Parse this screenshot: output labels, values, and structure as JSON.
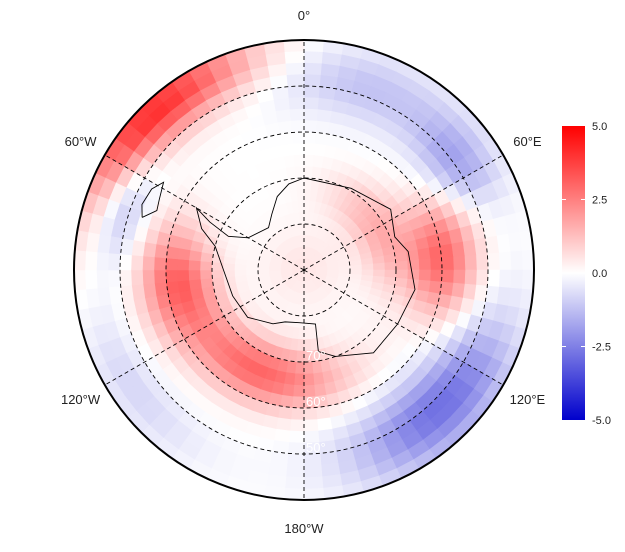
{
  "chart_data": {
    "type": "heatmap",
    "projection": "south-polar",
    "lat_range": [
      -90,
      -40
    ],
    "lon_labels": [
      {
        "lon": 0,
        "text": "0°"
      },
      {
        "lon": 60,
        "text": "60°E"
      },
      {
        "lon": 120,
        "text": "120°E"
      },
      {
        "lon": 180,
        "text": "180°W"
      },
      {
        "lon": 240,
        "text": "120°W"
      },
      {
        "lon": 300,
        "text": "60°W"
      }
    ],
    "lat_circles": [
      -80,
      -70,
      -60,
      -50
    ],
    "lat_labels": [
      {
        "lat": -70,
        "text": "70°"
      },
      {
        "lat": -60,
        "text": "60°"
      },
      {
        "lat": -50,
        "text": "50°"
      }
    ],
    "meridians": [
      0,
      60,
      120,
      180,
      240,
      300
    ],
    "colorbar": {
      "min": -5.0,
      "max": 5.0,
      "ticks": [
        "5.0",
        "2.5",
        "0.0",
        "-2.5",
        "-5.0"
      ],
      "tick_values": [
        5,
        2.5,
        0,
        -2.5,
        -5
      ],
      "colors": {
        "low": "#0000cc",
        "mid": "#ffffff",
        "high": "#ff0000"
      }
    },
    "field_anomalies": [
      {
        "lon": 315,
        "lat": -43,
        "amp": 4.2,
        "slat": 7,
        "slon": 30
      },
      {
        "lon": 20,
        "lat": -48,
        "amp": -1.2,
        "slat": 8,
        "slon": 30
      },
      {
        "lon": 55,
        "lat": -50,
        "amp": -1.6,
        "slat": 8,
        "slon": 15
      },
      {
        "lon": 85,
        "lat": -60,
        "amp": 3.0,
        "slat": 8,
        "slon": 25
      },
      {
        "lon": 135,
        "lat": -48,
        "amp": -2.8,
        "slat": 9,
        "slon": 30
      },
      {
        "lon": 205,
        "lat": -66,
        "amp": 3.0,
        "slat": 7,
        "slon": 45
      },
      {
        "lon": 265,
        "lat": -62,
        "amp": 2.8,
        "slat": 8,
        "slon": 25
      },
      {
        "lon": 290,
        "lat": -48,
        "amp": -1.8,
        "slat": 6,
        "slon": 18
      },
      {
        "lon": 235,
        "lat": -45,
        "amp": -0.8,
        "slat": 6,
        "slon": 25
      },
      {
        "lon": 60,
        "lat": -72,
        "amp": 1.5,
        "slat": 6,
        "slon": 40
      },
      {
        "lon": 0,
        "lat": -90,
        "amp": 0.5,
        "slat": 10,
        "slon": 400
      }
    ],
    "coastline_antarctica": [
      [
        0,
        -70
      ],
      [
        30,
        -69.5
      ],
      [
        55,
        -67
      ],
      [
        70,
        -69
      ],
      [
        80,
        -67
      ],
      [
        100,
        -65.5
      ],
      [
        120,
        -66.5
      ],
      [
        140,
        -66.5
      ],
      [
        160,
        -70
      ],
      [
        170,
        -72
      ],
      [
        168,
        -78
      ],
      [
        185,
        -78.5
      ],
      [
        200,
        -78
      ],
      [
        210,
        -76.5
      ],
      [
        230,
        -74
      ],
      [
        250,
        -73.5
      ],
      [
        270,
        -72.5
      ],
      [
        285,
        -70
      ],
      [
        292,
        -66
      ],
      [
        300,
        -63
      ],
      [
        297,
        -67
      ],
      [
        294,
        -72
      ],
      [
        300,
        -76
      ],
      [
        320,
        -78
      ],
      [
        330,
        -76
      ],
      [
        340,
        -73
      ],
      [
        350,
        -71
      ],
      [
        360,
        -70
      ]
    ],
    "coastline_south_america": [
      [
        288,
        -53
      ],
      [
        292,
        -55.5
      ],
      [
        296,
        -55
      ],
      [
        302,
        -54
      ],
      [
        298,
        -52.5
      ],
      [
        292,
        -52
      ],
      [
        288,
        -53
      ]
    ]
  }
}
